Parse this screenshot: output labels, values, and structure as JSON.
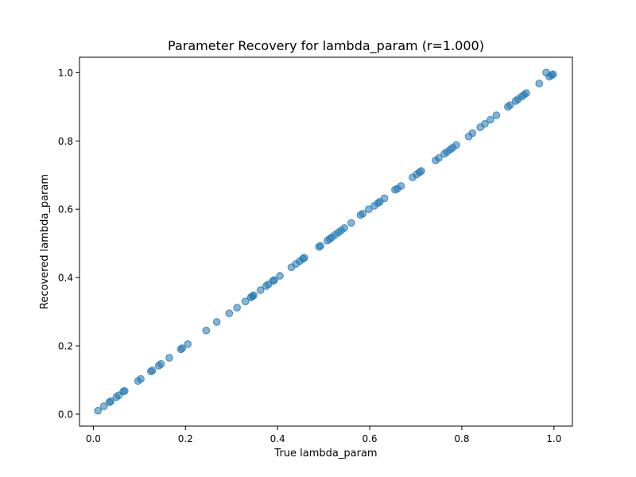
{
  "chart_data": {
    "type": "scatter",
    "title": "Parameter Recovery for lambda_param (r=1.000)",
    "xlabel": "True lambda_param",
    "ylabel": "Recovered lambda_param",
    "xlim": [
      -0.03,
      1.04
    ],
    "ylim": [
      -0.035,
      1.045
    ],
    "xticks": [
      {
        "value": 0.0,
        "label": "0.0"
      },
      {
        "value": 0.2,
        "label": "0.2"
      },
      {
        "value": 0.4,
        "label": "0.4"
      },
      {
        "value": 0.6,
        "label": "0.6"
      },
      {
        "value": 0.8,
        "label": "0.8"
      },
      {
        "value": 1.0,
        "label": "1.0"
      }
    ],
    "yticks": [
      {
        "value": 0.0,
        "label": "0.0"
      },
      {
        "value": 0.2,
        "label": "0.2"
      },
      {
        "value": 0.4,
        "label": "0.4"
      },
      {
        "value": 0.6,
        "label": "0.6"
      },
      {
        "value": 0.8,
        "label": "0.8"
      },
      {
        "value": 1.0,
        "label": "1.0"
      }
    ],
    "grid": false,
    "color": "#1f77b4",
    "x": [
      0.01,
      0.023,
      0.035,
      0.038,
      0.05,
      0.055,
      0.065,
      0.068,
      0.097,
      0.103,
      0.125,
      0.128,
      0.142,
      0.147,
      0.165,
      0.19,
      0.193,
      0.205,
      0.245,
      0.268,
      0.295,
      0.312,
      0.33,
      0.342,
      0.345,
      0.348,
      0.363,
      0.375,
      0.38,
      0.39,
      0.393,
      0.405,
      0.43,
      0.44,
      0.448,
      0.455,
      0.458,
      0.49,
      0.493,
      0.508,
      0.513,
      0.518,
      0.525,
      0.532,
      0.538,
      0.545,
      0.56,
      0.58,
      0.585,
      0.598,
      0.61,
      0.618,
      0.622,
      0.632,
      0.655,
      0.66,
      0.668,
      0.693,
      0.702,
      0.708,
      0.712,
      0.743,
      0.75,
      0.762,
      0.768,
      0.775,
      0.78,
      0.788,
      0.815,
      0.823,
      0.84,
      0.85,
      0.862,
      0.875,
      0.9,
      0.905,
      0.917,
      0.922,
      0.93,
      0.935,
      0.94,
      0.968,
      0.983,
      0.99,
      0.995,
      0.998
    ],
    "y": [
      0.01,
      0.023,
      0.035,
      0.038,
      0.05,
      0.055,
      0.066,
      0.068,
      0.097,
      0.103,
      0.125,
      0.128,
      0.142,
      0.147,
      0.165,
      0.19,
      0.193,
      0.205,
      0.245,
      0.27,
      0.295,
      0.312,
      0.33,
      0.342,
      0.345,
      0.348,
      0.363,
      0.375,
      0.38,
      0.39,
      0.393,
      0.405,
      0.43,
      0.44,
      0.448,
      0.455,
      0.458,
      0.49,
      0.493,
      0.508,
      0.513,
      0.518,
      0.525,
      0.532,
      0.538,
      0.545,
      0.56,
      0.583,
      0.587,
      0.6,
      0.61,
      0.618,
      0.622,
      0.632,
      0.657,
      0.66,
      0.668,
      0.693,
      0.702,
      0.708,
      0.712,
      0.743,
      0.75,
      0.762,
      0.768,
      0.775,
      0.78,
      0.788,
      0.813,
      0.823,
      0.84,
      0.85,
      0.862,
      0.875,
      0.9,
      0.905,
      0.917,
      0.922,
      0.93,
      0.935,
      0.94,
      0.968,
      1.0,
      0.988,
      0.993,
      0.995
    ]
  }
}
